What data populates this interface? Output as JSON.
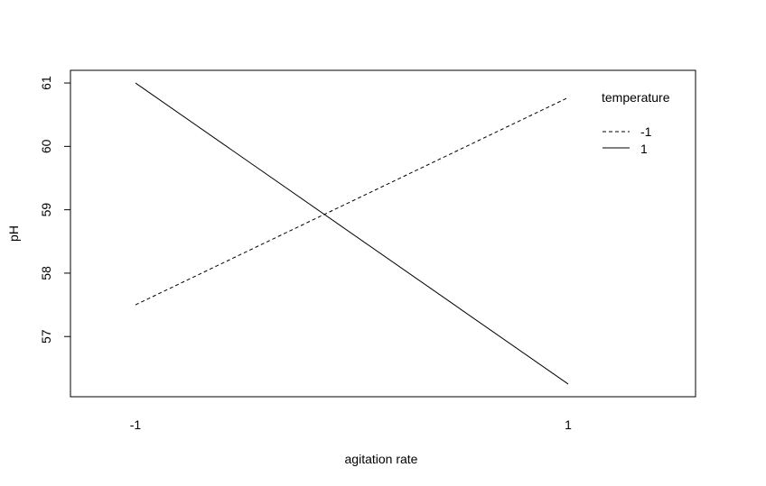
{
  "chart_data": {
    "type": "line",
    "title": "",
    "xlabel": "agitation rate",
    "ylabel": "pH",
    "categories": [
      "-1",
      "1"
    ],
    "ylim": [
      56.05,
      61.2
    ],
    "yticks": [
      "57",
      "58",
      "59",
      "60",
      "61"
    ],
    "grid": false,
    "legend": {
      "title": "temperature",
      "placement": "top-right",
      "entries": [
        "-1",
        "1"
      ]
    },
    "series": [
      {
        "name": "-1",
        "dash": "dashed",
        "values": [
          57.5,
          60.77
        ]
      },
      {
        "name": "1",
        "dash": "solid",
        "values": [
          61.0,
          56.25
        ]
      }
    ],
    "colors": {
      "line": "#000000",
      "frame": "#000000"
    }
  }
}
